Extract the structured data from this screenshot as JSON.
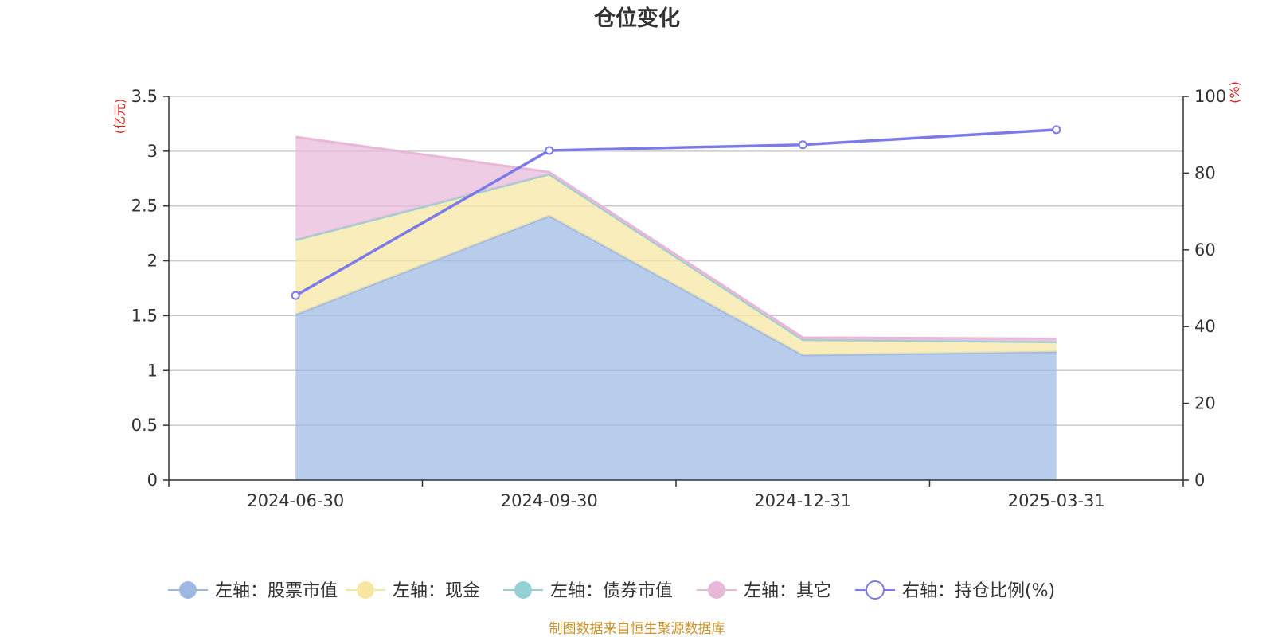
{
  "chart_data": {
    "type": "area",
    "title": "仓位变化",
    "categories": [
      "2024-06-30",
      "2024-09-30",
      "2024-12-31",
      "2025-03-31"
    ],
    "left_axis": {
      "label": "(亿元)",
      "ylim": [
        0,
        3.5
      ],
      "ticks": [
        "0",
        "0.5",
        "1",
        "1.5",
        "2",
        "2.5",
        "3",
        "3.5"
      ]
    },
    "right_axis": {
      "label": "(%)",
      "ylim": [
        0,
        100
      ],
      "ticks": [
        "0",
        "20",
        "40",
        "60",
        "80",
        "100"
      ]
    },
    "series": [
      {
        "name": "左轴：股票市值",
        "axis": "left",
        "kind": "stacked-area",
        "color": "#9db9e3",
        "values": [
          1.51,
          2.41,
          1.14,
          1.17
        ]
      },
      {
        "name": "左轴：现金",
        "axis": "left",
        "kind": "stacked-area",
        "color": "#f7e6a2",
        "values": [
          0.68,
          0.38,
          0.14,
          0.09
        ]
      },
      {
        "name": "左轴：债券市值",
        "axis": "left",
        "kind": "stacked-area",
        "color": "#94d1d4",
        "values": [
          0,
          0,
          0,
          0
        ]
      },
      {
        "name": "左轴：其它",
        "axis": "left",
        "kind": "stacked-area",
        "color": "#e8b8d9",
        "values": [
          0.94,
          0.02,
          0.02,
          0.03
        ]
      },
      {
        "name": "右轴：持仓比例(%)",
        "axis": "right",
        "kind": "line",
        "color": "#7b7be8",
        "values": [
          48.1,
          85.9,
          87.4,
          91.3
        ]
      }
    ],
    "grid": true,
    "legend_position": "bottom"
  },
  "source_note": "制图数据来自恒生聚源数据库",
  "colors": {
    "axis_label": "#e02020",
    "source": "#c8922a",
    "grid": "#cccccc"
  }
}
